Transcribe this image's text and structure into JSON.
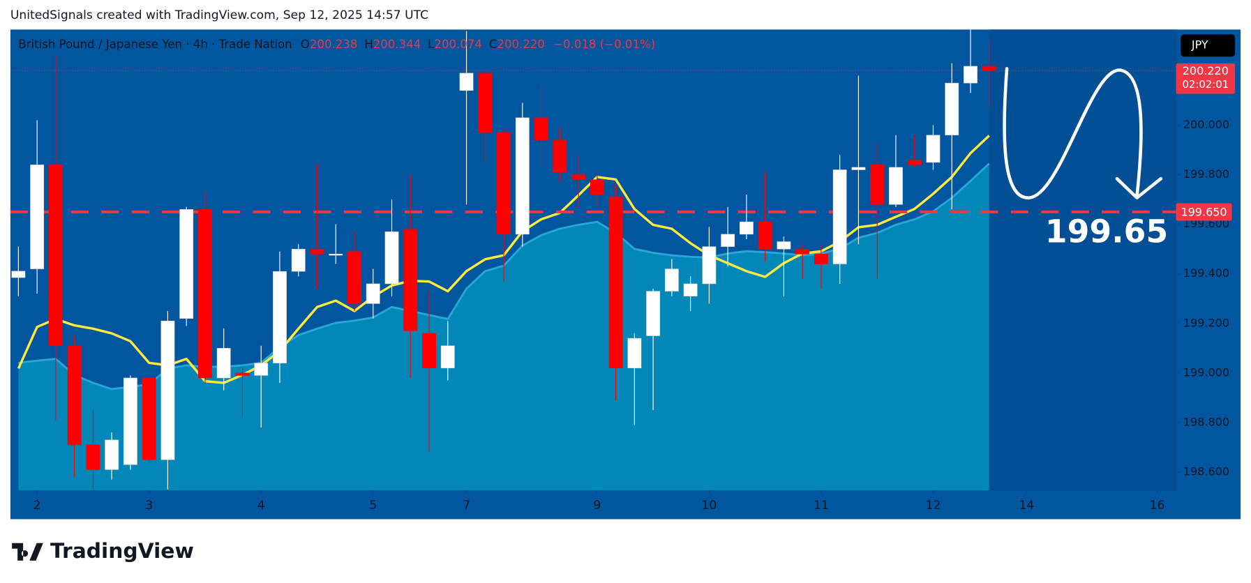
{
  "header": {
    "attribution": "UnitedSignals created with TradingView.com, Sep 12, 2025 14:57 UTC",
    "symbol": "British Pound / Japanese Yen · 4h · Trade Nation",
    "ohlc": [
      {
        "key": "O",
        "value": "200.238"
      },
      {
        "key": "H",
        "value": "200.344"
      },
      {
        "key": "L",
        "value": "200.074"
      },
      {
        "key": "C",
        "value": "200.220"
      }
    ],
    "change": "−0.018 (−0.01%)",
    "currency": "JPY"
  },
  "chart_data": {
    "type": "candlestick",
    "up_color": "#ffffff",
    "down_color": "#ff0000",
    "open": [
      199.385,
      199.42,
      199.84,
      199.11,
      198.71,
      198.61,
      198.63,
      198.98,
      198.65,
      199.22,
      199.66,
      198.98,
      199.0,
      198.99,
      199.04,
      199.41,
      199.5,
      199.48,
      199.49,
      199.28,
      199.36,
      199.58,
      199.16,
      199.02,
      200.14,
      200.21,
      199.97,
      199.56,
      200.03,
      199.94,
      199.8,
      199.78,
      199.71,
      199.02,
      199.15,
      199.33,
      199.31,
      199.36,
      199.51,
      199.56,
      199.61,
      199.5,
      199.5,
      199.48,
      199.44,
      199.82,
      199.84,
      199.68,
      199.86,
      199.85,
      199.96,
      200.17,
      200.238
    ],
    "high": [
      199.51,
      200.02,
      200.28,
      199.15,
      198.85,
      198.76,
      198.99,
      198.99,
      199.25,
      199.67,
      199.73,
      199.18,
      199.02,
      199.11,
      199.49,
      199.52,
      199.84,
      199.6,
      199.57,
      199.42,
      199.7,
      199.8,
      199.33,
      199.21,
      200.38,
      200.22,
      199.99,
      200.09,
      200.16,
      199.99,
      199.88,
      199.81,
      199.76,
      199.16,
      199.34,
      199.46,
      199.39,
      199.59,
      199.67,
      199.72,
      199.81,
      199.55,
      199.52,
      199.52,
      199.88,
      200.2,
      199.93,
      199.96,
      199.96,
      200.0,
      200.25,
      200.39,
      200.344
    ],
    "low": [
      199.31,
      199.32,
      198.81,
      198.58,
      198.53,
      198.57,
      198.61,
      198.64,
      198.53,
      199.19,
      198.96,
      198.93,
      198.82,
      198.78,
      198.96,
      199.39,
      199.34,
      199.44,
      199.25,
      199.22,
      199.31,
      198.98,
      198.68,
      198.97,
      199.68,
      199.85,
      199.37,
      199.51,
      199.83,
      199.77,
      199.67,
      199.67,
      198.89,
      198.79,
      198.85,
      199.31,
      199.25,
      199.28,
      199.43,
      199.54,
      199.45,
      199.31,
      199.38,
      199.34,
      199.36,
      199.52,
      199.38,
      199.67,
      199.83,
      199.82,
      199.66,
      200.13,
      200.074
    ],
    "close": [
      199.411,
      199.84,
      199.11,
      198.71,
      198.61,
      198.73,
      198.98,
      198.65,
      199.21,
      199.66,
      198.98,
      199.1,
      198.99,
      199.04,
      199.41,
      199.5,
      199.48,
      199.48,
      199.28,
      199.36,
      199.57,
      199.17,
      199.02,
      199.11,
      200.21,
      199.97,
      199.56,
      200.03,
      199.94,
      199.81,
      199.78,
      199.72,
      199.02,
      199.14,
      199.33,
      199.42,
      199.36,
      199.51,
      199.56,
      199.61,
      199.5,
      199.53,
      199.48,
      199.44,
      199.82,
      199.83,
      199.68,
      199.83,
      199.84,
      199.96,
      200.17,
      200.238,
      200.22
    ],
    "lines": [
      {
        "color": "#ffeb3b",
        "values": [
          199.018,
          199.186,
          199.218,
          199.192,
          199.179,
          199.16,
          199.128,
          199.041,
          199.031,
          199.057,
          198.967,
          198.96,
          198.992,
          199.031,
          199.089,
          199.179,
          199.266,
          199.292,
          199.25,
          199.308,
          199.353,
          199.372,
          199.369,
          199.33,
          199.411,
          199.459,
          199.475,
          199.572,
          199.62,
          199.646,
          199.717,
          199.791,
          199.781,
          199.662,
          199.598,
          199.582,
          199.524,
          199.475,
          199.443,
          199.411,
          199.388,
          199.443,
          199.482,
          199.491,
          199.53,
          199.588,
          199.598,
          199.63,
          199.662,
          199.723,
          199.791,
          199.887,
          199.958
        ]
      }
    ],
    "area": {
      "color": "#0387b9",
      "line_color": "#29a8d8",
      "values": [
        199.041,
        199.05,
        199.057,
        198.992,
        198.96,
        198.935,
        198.944,
        198.954,
        199.018,
        199.031,
        199.025,
        199.025,
        199.031,
        199.041,
        199.105,
        199.153,
        199.179,
        199.202,
        199.211,
        199.224,
        199.266,
        199.25,
        199.234,
        199.218,
        199.34,
        199.411,
        199.433,
        199.514,
        199.556,
        199.582,
        199.598,
        199.61,
        199.565,
        199.501,
        199.485,
        199.475,
        199.469,
        199.466,
        199.482,
        199.491,
        199.488,
        199.482,
        199.475,
        199.482,
        199.501,
        199.546,
        199.565,
        199.598,
        199.62,
        199.652,
        199.707,
        199.775,
        199.845
      ]
    },
    "xlim": [
      -0.43,
      62.05
    ],
    "xticks": [
      {
        "value": 1,
        "label": "2"
      },
      {
        "value": 7,
        "label": "3"
      },
      {
        "value": 13,
        "label": "4"
      },
      {
        "value": 19,
        "label": "5"
      },
      {
        "value": 24,
        "label": "7"
      },
      {
        "value": 31,
        "label": "9"
      },
      {
        "value": 37,
        "label": "10"
      },
      {
        "value": 43,
        "label": "11"
      },
      {
        "value": 49,
        "label": "12"
      },
      {
        "value": 54,
        "label": "14"
      },
      {
        "value": 61,
        "label": "16"
      }
    ],
    "ylim": [
      198.526,
      200.386
    ],
    "yticks": [
      {
        "value": 200,
        "label": "200.000"
      },
      {
        "value": 199.8,
        "label": "199.800"
      },
      {
        "value": 199.6,
        "label": "199.600"
      },
      {
        "value": 199.4,
        "label": "199.400"
      },
      {
        "value": 199.2,
        "label": "199.200"
      },
      {
        "value": 199,
        "label": "199.000"
      },
      {
        "value": 198.8,
        "label": "198.800"
      },
      {
        "value": 198.6,
        "label": "198.600"
      }
    ],
    "hline": {
      "value": 199.65,
      "label": "199.650",
      "color": "#f23645"
    },
    "last_price": {
      "value": 200.22,
      "label": "200.220",
      "countdown": "02:02:01",
      "color": "#f23645"
    },
    "annotation": "199.65"
  },
  "footer": {
    "brand": "TradingView"
  }
}
